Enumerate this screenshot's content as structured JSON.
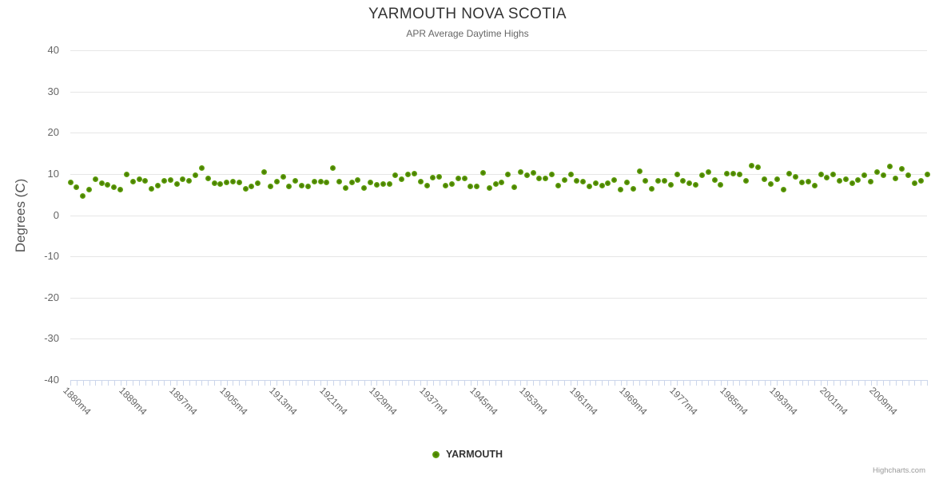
{
  "credits": "Highcharts.com",
  "colors": {
    "title": "#333333",
    "subtitle": "#666666",
    "axis_label": "#666666",
    "y_title": "#555555",
    "grid": "#e6e6e6",
    "axis_tick": "#ccd6eb",
    "marker_center": "#456f00",
    "marker_mid": "#579508",
    "marker_edge": "#76bd1f",
    "legend_text": "#333333",
    "credits_text": "#999999"
  },
  "chart_data": {
    "type": "scatter",
    "title": "YARMOUTH NOVA SCOTIA",
    "subtitle": "APR Average Daytime Highs",
    "xlabel": "",
    "ylabel": "Degrees (C)",
    "ylim": [
      -40,
      40
    ],
    "y_ticks": [
      40,
      30,
      20,
      10,
      0,
      -10,
      -20,
      -30,
      -40
    ],
    "grid": true,
    "legend_position": "bottom",
    "x_start_year": 1880,
    "x_category_suffix": "m4",
    "x_tick_labels": [
      "1880m4",
      "1889m4",
      "1897m4",
      "1905m4",
      "1913m4",
      "1921m4",
      "1929m4",
      "1937m4",
      "1945m4",
      "1953m4",
      "1961m4",
      "1969m4",
      "1977m4",
      "1985m4",
      "1993m4",
      "2001m4",
      "2009m4"
    ],
    "series": [
      {
        "name": "YARMOUTH",
        "color": "#579508",
        "start_year": 1880,
        "values": [
          7.9,
          6.8,
          4.7,
          6.3,
          8.7,
          7.7,
          7.3,
          6.8,
          6.2,
          9.8,
          8.1,
          8.7,
          8.3,
          6.4,
          7.2,
          8.3,
          8.6,
          7.5,
          8.7,
          8.4,
          9.7,
          11.4,
          9.0,
          7.7,
          7.5,
          7.9,
          8.1,
          7.9,
          6.4,
          6.9,
          7.8,
          10.4,
          6.9,
          8.1,
          9.3,
          6.9,
          8.3,
          7.2,
          6.9,
          8.1,
          8.1,
          7.9,
          11.4,
          8.1,
          6.6,
          7.9,
          8.5,
          6.5,
          7.9,
          7.3,
          7.5,
          7.5,
          9.7,
          8.7,
          9.9,
          10.1,
          8.2,
          7.1,
          9.1,
          9.3,
          7.2,
          7.6,
          8.9,
          8.9,
          6.9,
          6.9,
          10.3,
          6.6,
          7.6,
          7.9,
          9.8,
          6.8,
          10.4,
          9.7,
          10.3,
          8.9,
          9.0,
          9.9,
          7.2,
          8.5,
          9.8,
          8.4,
          8.1,
          6.9,
          7.7,
          7.2,
          7.7,
          8.5,
          6.2,
          7.9,
          6.4,
          10.6,
          8.4,
          6.4,
          8.4,
          8.3,
          7.3,
          9.9,
          8.4,
          7.7,
          7.3,
          9.7,
          10.4,
          8.6,
          7.3,
          10.0,
          10.1,
          9.9,
          8.4,
          12.0,
          11.6,
          8.7,
          7.5,
          8.8,
          6.2,
          10.0,
          9.4,
          7.9,
          8.1,
          7.1,
          9.8,
          9.2,
          9.8,
          8.4,
          8.7,
          7.7,
          8.5,
          9.7,
          8.1,
          10.5,
          9.7,
          11.8,
          8.9,
          11.3,
          9.7,
          7.7,
          8.4,
          9.9
        ]
      }
    ]
  }
}
